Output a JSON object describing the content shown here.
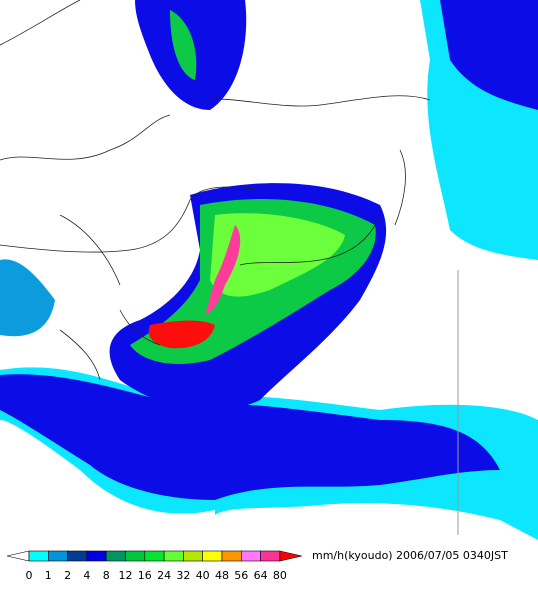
{
  "legend": {
    "ticks": [
      0,
      1,
      2,
      4,
      8,
      12,
      16,
      24,
      32,
      40,
      48,
      56,
      64,
      80
    ],
    "colors": [
      "#ffffff",
      "#00ffff",
      "#0096dc",
      "#003c96",
      "#0000e6",
      "#009664",
      "#00c83c",
      "#00e632",
      "#64ff32",
      "#b4e600",
      "#ffff00",
      "#ff9600",
      "#ff78ff",
      "#ff3296",
      "#ff0000"
    ],
    "unit": "mm/h(kyoudo)"
  },
  "timestamp": "2006/07/05 0340JST"
}
